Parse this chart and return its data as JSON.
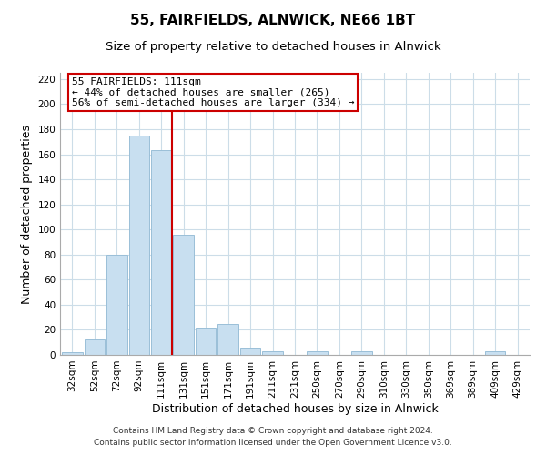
{
  "title": "55, FAIRFIELDS, ALNWICK, NE66 1BT",
  "subtitle": "Size of property relative to detached houses in Alnwick",
  "xlabel": "Distribution of detached houses by size in Alnwick",
  "ylabel": "Number of detached properties",
  "bar_labels": [
    "32sqm",
    "52sqm",
    "72sqm",
    "92sqm",
    "111sqm",
    "131sqm",
    "151sqm",
    "171sqm",
    "191sqm",
    "211sqm",
    "231sqm",
    "250sqm",
    "270sqm",
    "290sqm",
    "310sqm",
    "330sqm",
    "350sqm",
    "369sqm",
    "389sqm",
    "409sqm",
    "429sqm"
  ],
  "bar_heights": [
    2,
    12,
    80,
    175,
    163,
    96,
    22,
    25,
    6,
    3,
    0,
    3,
    0,
    3,
    0,
    0,
    0,
    0,
    0,
    3,
    0
  ],
  "bar_color": "#c8dff0",
  "bar_edge_color": "#9abfd8",
  "vline_x_index": 4,
  "vline_color": "#cc0000",
  "annotation_title": "55 FAIRFIELDS: 111sqm",
  "annotation_line1": "← 44% of detached houses are smaller (265)",
  "annotation_line2": "56% of semi-detached houses are larger (334) →",
  "annotation_box_color": "#ffffff",
  "annotation_box_edge": "#cc0000",
  "ylim": [
    0,
    225
  ],
  "yticks": [
    0,
    20,
    40,
    60,
    80,
    100,
    120,
    140,
    160,
    180,
    200,
    220
  ],
  "footer_line1": "Contains HM Land Registry data © Crown copyright and database right 2024.",
  "footer_line2": "Contains public sector information licensed under the Open Government Licence v3.0.",
  "background_color": "#ffffff",
  "grid_color": "#ccdde8",
  "title_fontsize": 11,
  "subtitle_fontsize": 9.5,
  "axis_label_fontsize": 9,
  "tick_fontsize": 7.5,
  "footer_fontsize": 6.5,
  "annotation_fontsize": 8
}
